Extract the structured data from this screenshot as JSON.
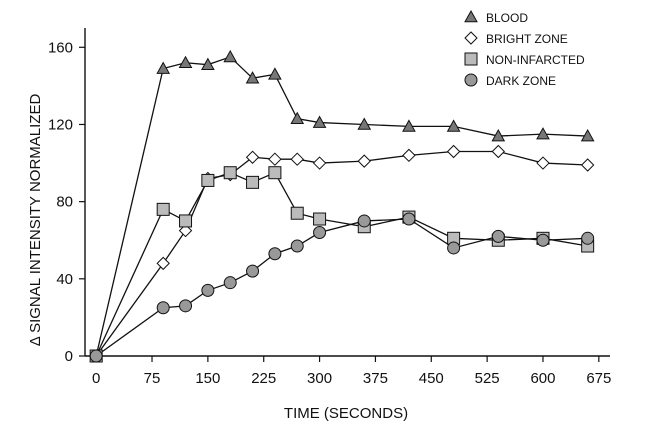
{
  "chart_data": {
    "type": "line",
    "xlabel": "TIME (SECONDS)",
    "ylabel": "Δ SIGNAL INTENSITY NORMALIZED",
    "xlim": [
      -15,
      690
    ],
    "ylim": [
      0,
      170
    ],
    "xticks": [
      0,
      75,
      150,
      225,
      300,
      375,
      450,
      525,
      600,
      675
    ],
    "yticks": [
      0,
      40,
      80,
      120,
      160
    ],
    "grid": false,
    "legend_position": "top-right",
    "series": [
      {
        "name": "BLOOD",
        "marker": "triangle",
        "color": "#777777",
        "x": [
          0,
          90,
          120,
          150,
          180,
          210,
          240,
          270,
          300,
          360,
          420,
          480,
          540,
          600,
          660
        ],
        "y": [
          0,
          149,
          152,
          151,
          155,
          144,
          146,
          123,
          121,
          120,
          119,
          119,
          114,
          115,
          114
        ]
      },
      {
        "name": "BRIGHT ZONE",
        "marker": "diamond",
        "color": "#ffffff",
        "x": [
          0,
          90,
          120,
          150,
          180,
          210,
          240,
          270,
          300,
          360,
          420,
          480,
          540,
          600,
          660
        ],
        "y": [
          0,
          48,
          65,
          92,
          94,
          103,
          102,
          102,
          100,
          101,
          104,
          106,
          106,
          100,
          99
        ]
      },
      {
        "name": "NON-INFARCTED",
        "marker": "square",
        "color": "#bbbbbb",
        "x": [
          0,
          90,
          120,
          150,
          180,
          210,
          240,
          270,
          300,
          360,
          420,
          480,
          540,
          600,
          660
        ],
        "y": [
          0,
          76,
          70,
          91,
          95,
          90,
          95,
          74,
          71,
          67,
          72,
          61,
          60,
          61,
          57
        ]
      },
      {
        "name": "DARK ZONE",
        "marker": "circle",
        "color": "#999999",
        "x": [
          0,
          90,
          120,
          150,
          180,
          210,
          240,
          270,
          300,
          360,
          420,
          480,
          540,
          600,
          660
        ],
        "y": [
          0,
          25,
          26,
          34,
          38,
          44,
          53,
          57,
          64,
          70,
          71,
          56,
          62,
          60,
          61
        ]
      }
    ]
  }
}
